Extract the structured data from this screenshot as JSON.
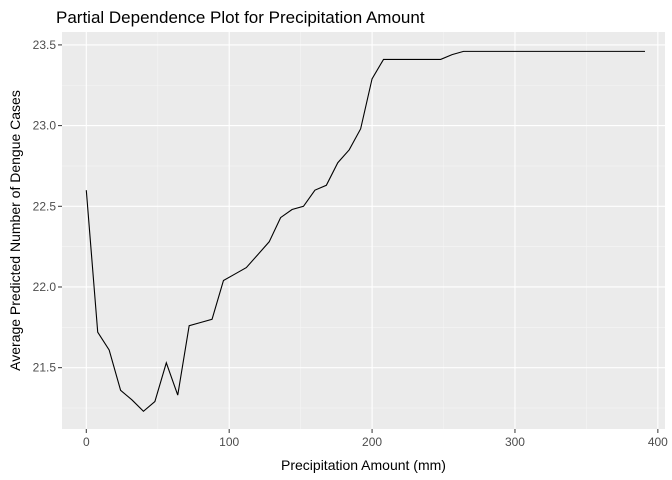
{
  "chart_data": {
    "type": "line",
    "title": "Partial Dependence Plot for Precipitation Amount",
    "xlabel": "Precipitation Amount (mm)",
    "ylabel": "Average Predicted Number of Dengue Cases",
    "xlim": [
      -17,
      405
    ],
    "ylim": [
      21.12,
      23.58
    ],
    "x_ticks": [
      0,
      100,
      200,
      300,
      400
    ],
    "x_tick_labels": [
      "0",
      "100",
      "200",
      "300",
      "400"
    ],
    "y_ticks": [
      21.5,
      22.0,
      22.5,
      23.0,
      23.5
    ],
    "y_tick_labels": [
      "21.5",
      "22.0",
      "22.5",
      "23.0",
      "23.5"
    ],
    "grid": true,
    "colors": {
      "panel": "#ebebeb",
      "grid_major": "#ffffff",
      "grid_minor": "#f5f5f5",
      "line": "#000000",
      "tick": "#333333"
    },
    "series": [
      {
        "x": [
          0,
          8,
          16,
          24,
          32,
          40,
          48,
          56,
          64,
          72,
          80,
          88,
          96,
          104,
          112,
          120,
          128,
          136,
          144,
          152,
          160,
          168,
          176,
          184,
          192,
          200,
          208,
          216,
          224,
          232,
          240,
          248,
          256,
          264,
          272,
          280,
          288,
          296,
          304,
          312,
          320,
          328,
          336,
          344,
          352,
          360,
          368,
          376,
          384,
          391
        ],
        "y": [
          22.6,
          21.72,
          21.61,
          21.36,
          21.3,
          21.23,
          21.29,
          21.53,
          21.33,
          21.76,
          21.78,
          21.8,
          22.04,
          22.08,
          22.12,
          22.2,
          22.28,
          22.43,
          22.48,
          22.5,
          22.6,
          22.63,
          22.77,
          22.85,
          22.98,
          23.29,
          23.41,
          23.41,
          23.41,
          23.41,
          23.41,
          23.41,
          23.44,
          23.46,
          23.46,
          23.46,
          23.46,
          23.46,
          23.46,
          23.46,
          23.46,
          23.46,
          23.46,
          23.46,
          23.46,
          23.46,
          23.46,
          23.46,
          23.46,
          23.46
        ]
      }
    ]
  }
}
